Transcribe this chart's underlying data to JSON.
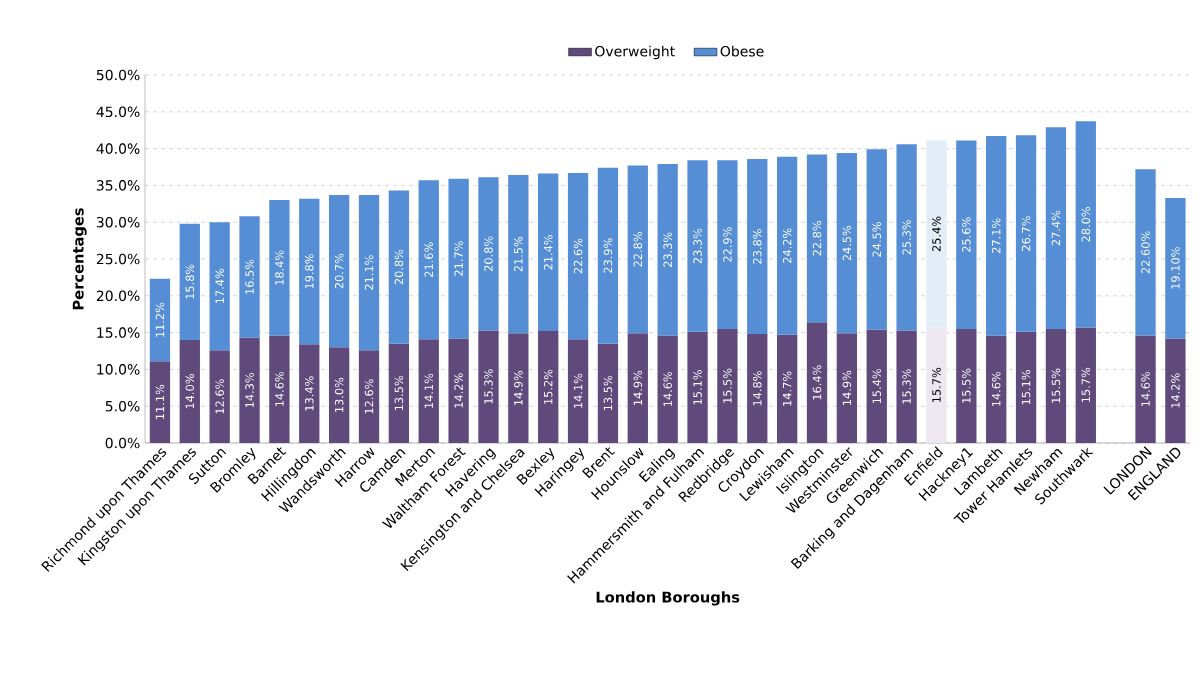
{
  "chart_data": {
    "type": "bar",
    "stacked": true,
    "xlabel": "London Boroughs",
    "ylabel": "Percentages",
    "categories": [
      "Richmond upon Thames",
      "Kingston upon Thames",
      "Sutton",
      "Bromley",
      "Barnet",
      "Hillingdon",
      "Wandsworth",
      "Harrow",
      "Camden",
      "Merton",
      "Waltham Forest",
      "Havering",
      "Kensington and Chelsea",
      "Bexley",
      "Haringey",
      "Brent",
      "Hounslow",
      "Ealing",
      "Hammersmith and Fulham",
      "Redbridge",
      "Croydon",
      "Lewisham",
      "Islington",
      "Westminster",
      "Greenwich",
      "Barking and Dagenham",
      "Enfield",
      "Hackney1",
      "Lambeth",
      "Tower Hamlets",
      "Newham",
      "Southwark",
      null,
      "LONDON",
      "ENGLAND"
    ],
    "series": [
      {
        "name": "Overweight",
        "color": "#604a7b",
        "colors": [
          "#604a7b",
          "#604a7b",
          "#604a7b",
          "#604a7b",
          "#604a7b",
          "#604a7b",
          "#604a7b",
          "#604a7b",
          "#604a7b",
          "#604a7b",
          "#604a7b",
          "#604a7b",
          "#604a7b",
          "#604a7b",
          "#604a7b",
          "#604a7b",
          "#604a7b",
          "#604a7b",
          "#604a7b",
          "#604a7b",
          "#604a7b",
          "#604a7b",
          "#604a7b",
          "#604a7b",
          "#604a7b",
          "#604a7b",
          "#ece7f0",
          "#604a7b",
          "#604a7b",
          "#604a7b",
          "#604a7b",
          "#604a7b",
          "#604a7b",
          "#604a7b",
          "#604a7b"
        ],
        "values": [
          11.1,
          14.0,
          12.6,
          14.3,
          14.6,
          13.4,
          13.0,
          12.6,
          13.5,
          14.1,
          14.2,
          15.3,
          14.9,
          15.2,
          14.1,
          13.5,
          14.9,
          14.6,
          15.1,
          15.5,
          14.8,
          14.7,
          16.4,
          14.9,
          15.4,
          15.3,
          15.7,
          15.5,
          14.6,
          15.1,
          15.5,
          15.7,
          null,
          14.6,
          14.2
        ],
        "value_labels": [
          "11.1%",
          "14.0%",
          "12.6%",
          "14.3%",
          "14.6%",
          "13.4%",
          "13.0%",
          "12.6%",
          "13.5%",
          "14.1%",
          "14.2%",
          "15.3%",
          "14.9%",
          "15.2%",
          "14.1%",
          "13.5%",
          "14.9%",
          "14.6%",
          "15.1%",
          "15.5%",
          "14.8%",
          "14.7%",
          "16.4%",
          "14.9%",
          "15.4%",
          "15.3%",
          "15.7%",
          "15.5%",
          "14.6%",
          "15.1%",
          "15.5%",
          "15.7%",
          null,
          "14.6%",
          "14.2%"
        ]
      },
      {
        "name": "Obese",
        "color": "#558ed5",
        "colors": [
          "#558ed5",
          "#558ed5",
          "#558ed5",
          "#558ed5",
          "#558ed5",
          "#558ed5",
          "#558ed5",
          "#558ed5",
          "#558ed5",
          "#558ed5",
          "#558ed5",
          "#558ed5",
          "#558ed5",
          "#558ed5",
          "#558ed5",
          "#558ed5",
          "#558ed5",
          "#558ed5",
          "#558ed5",
          "#558ed5",
          "#558ed5",
          "#558ed5",
          "#558ed5",
          "#558ed5",
          "#558ed5",
          "#558ed5",
          "#e3edf8",
          "#558ed5",
          "#558ed5",
          "#558ed5",
          "#558ed5",
          "#558ed5",
          "#558ed5",
          "#558ed5",
          "#558ed5"
        ],
        "values": [
          11.2,
          15.8,
          17.4,
          16.5,
          18.4,
          19.8,
          20.7,
          21.1,
          20.8,
          21.6,
          21.7,
          20.8,
          21.5,
          21.4,
          22.6,
          23.9,
          22.8,
          23.3,
          23.3,
          22.9,
          23.8,
          24.2,
          22.8,
          24.5,
          24.5,
          25.3,
          25.4,
          25.6,
          27.1,
          26.7,
          27.4,
          28.0,
          null,
          22.6,
          19.1
        ],
        "value_labels": [
          "11.2%",
          "15.8%",
          "17.4%",
          "16.5%",
          "18.4%",
          "19.8%",
          "20.7%",
          "21.1%",
          "20.8%",
          "21.6%",
          "21.7%",
          "20.8%",
          "21.5%",
          "21.4%",
          "22.6%",
          "23.9%",
          "22.8%",
          "23.3%",
          "23.3%",
          "22.9%",
          "23.8%",
          "24.2%",
          "22.8%",
          "24.5%",
          "24.5%",
          "25.3%",
          "25.4%",
          "25.6%",
          "27.1%",
          "26.7%",
          "27.4%",
          "28.0%",
          null,
          "22.60%",
          "19.10%"
        ]
      }
    ],
    "ylim": [
      0,
      50
    ],
    "yticks": [
      {
        "value": 0,
        "label": "0.0%"
      },
      {
        "value": 5,
        "label": "5.0%"
      },
      {
        "value": 10,
        "label": "10.0%"
      },
      {
        "value": 15,
        "label": "15.0%"
      },
      {
        "value": 20,
        "label": "20.0%"
      },
      {
        "value": 25,
        "label": "25.0%"
      },
      {
        "value": 30,
        "label": "30.0%"
      },
      {
        "value": 35,
        "label": "35.0%"
      },
      {
        "value": 40,
        "label": "40.0%"
      },
      {
        "value": 45,
        "label": "45.0%"
      },
      {
        "value": 50,
        "label": "50.0%"
      }
    ],
    "grid": "y",
    "legend": "top"
  }
}
